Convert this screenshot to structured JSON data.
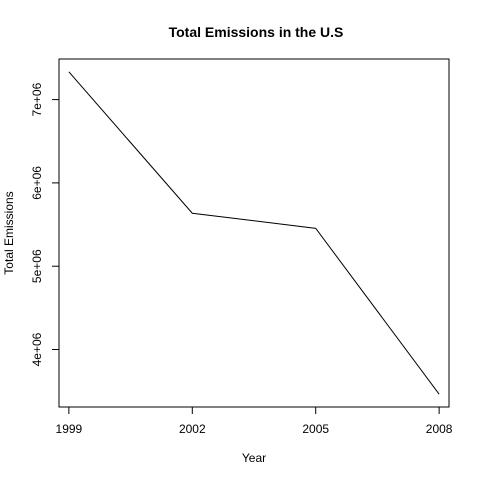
{
  "chart_data": {
    "type": "line",
    "title": "Total Emissions in the U.S",
    "xlabel": "Year",
    "ylabel": "Total Emissions",
    "x": [
      1999,
      2002,
      2005,
      2008
    ],
    "values": [
      7332967,
      5635780,
      5454703,
      3464206
    ],
    "xticks": [
      1999,
      2002,
      2005,
      2008
    ],
    "xtick_labels": [
      "1999",
      "2002",
      "2005",
      "2008"
    ],
    "yticks": [
      4000000,
      5000000,
      6000000,
      7000000
    ],
    "ytick_labels": [
      "4e+06",
      "5e+06",
      "6e+06",
      "7e+06"
    ],
    "xlim": [
      1998.76,
      2008.24
    ],
    "ylim": [
      3309896,
      7487277
    ],
    "line_color": "#000000",
    "grid": false,
    "legend": "none"
  }
}
